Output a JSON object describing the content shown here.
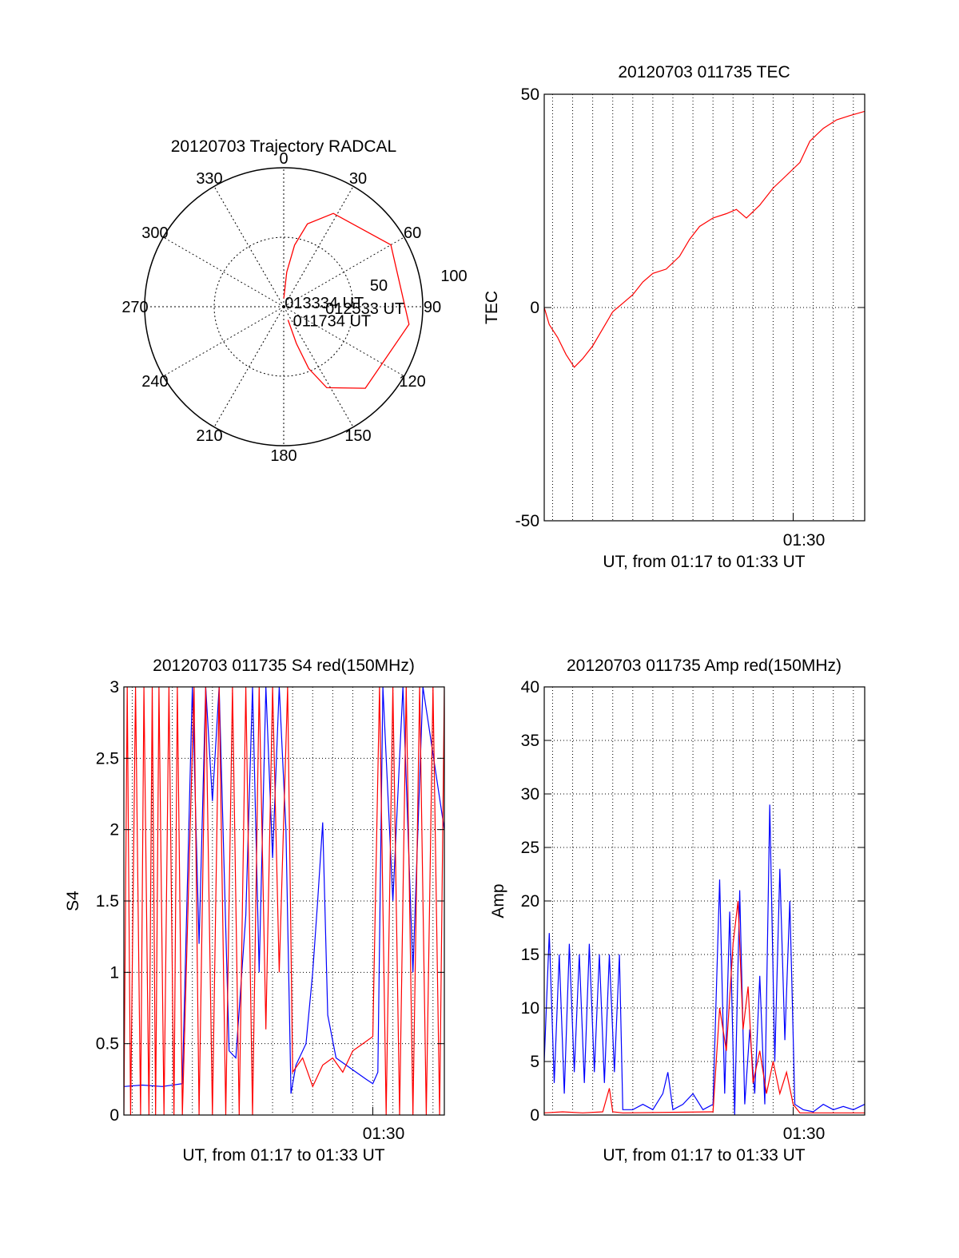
{
  "figure": {
    "colors": {
      "red_series": "#ff0000",
      "blue_series": "#0000ff",
      "axes": "#000000",
      "grid": "#000000"
    }
  },
  "chart_data": [
    {
      "type": "polar",
      "title": "20120703 Trajectory RADCAL",
      "angle_labels": [
        "0",
        "30",
        "60",
        "90",
        "120",
        "150",
        "180",
        "210",
        "240",
        "270",
        "300",
        "330"
      ],
      "radial_labels": [
        "50",
        "100"
      ],
      "radial_max": 100,
      "grid": true,
      "series": [
        {
          "color": "#ff0000",
          "points": [
            {
              "az": 0.5,
              "el": 94
            },
            {
              "az": 5,
              "el": 75
            },
            {
              "az": 10,
              "el": 55
            },
            {
              "az": 16,
              "el": 38
            },
            {
              "az": 28,
              "el": 24
            },
            {
              "az": 60,
              "el": 11
            },
            {
              "az": 98,
              "el": 9
            },
            {
              "az": 135,
              "el": 17
            },
            {
              "az": 152,
              "el": 34
            },
            {
              "az": 158,
              "el": 52
            },
            {
              "az": 161,
              "el": 72
            },
            {
              "az": 162,
              "el": 90
            }
          ]
        }
      ],
      "annotations": [
        {
          "text": "013334 UT",
          "az": 14,
          "el": 97
        },
        {
          "text": "012533 UT",
          "az": 92,
          "el": 70
        },
        {
          "text": "011734 UT",
          "az": 146,
          "el": 88
        }
      ]
    },
    {
      "type": "line",
      "title": "20120703 011735 TEC",
      "xlabel": "UT, from 01:17 to 01:33 UT",
      "ylabel": "TEC",
      "xlim": [
        "01:17:35",
        "01:33:34"
      ],
      "ylim": [
        -50,
        50
      ],
      "y_ticks": [
        "-50",
        "0",
        "50"
      ],
      "x_tick_label": "01:30",
      "grid": "vertical dotted",
      "series": [
        {
          "color": "#ff0000",
          "points": [
            [
              "01:17:35",
              0
            ],
            [
              "01:17:50",
              -4
            ],
            [
              "01:18:15",
              -7
            ],
            [
              "01:18:40",
              -11
            ],
            [
              "01:19:05",
              -14
            ],
            [
              "01:19:30",
              -12
            ],
            [
              "01:20:00",
              -9
            ],
            [
              "01:20:30",
              -5
            ],
            [
              "01:21:00",
              -1
            ],
            [
              "01:21:30",
              1
            ],
            [
              "01:22:00",
              3
            ],
            [
              "01:22:30",
              6
            ],
            [
              "01:23:00",
              8
            ],
            [
              "01:23:40",
              9
            ],
            [
              "01:24:20",
              12
            ],
            [
              "01:24:50",
              16
            ],
            [
              "01:25:20",
              19
            ],
            [
              "01:26:00",
              21
            ],
            [
              "01:26:40",
              22
            ],
            [
              "01:27:10",
              23
            ],
            [
              "01:27:40",
              21
            ],
            [
              "01:28:20",
              24
            ],
            [
              "01:29:00",
              28
            ],
            [
              "01:29:40",
              31
            ],
            [
              "01:30:20",
              34
            ],
            [
              "01:30:50",
              39
            ],
            [
              "01:31:30",
              42
            ],
            [
              "01:32:10",
              44
            ],
            [
              "01:32:50",
              45
            ],
            [
              "01:33:34",
              46
            ]
          ]
        }
      ]
    },
    {
      "type": "line",
      "title": "20120703 011735 S4 red(150MHz)",
      "xlabel": "UT, from 01:17 to 01:33 UT",
      "ylabel": "S4",
      "xlim": [
        "01:17:35",
        "01:33:34"
      ],
      "ylim": [
        0,
        3
      ],
      "y_ticks": [
        "0",
        "0.5",
        "1",
        "1.5",
        "2",
        "2.5",
        "3"
      ],
      "x_tick_label": "01:30",
      "grid": true,
      "series": [
        {
          "color": "#0000ff",
          "points": [
            [
              "01:17:35",
              0.2
            ],
            [
              "01:18:30",
              0.21
            ],
            [
              "01:19:30",
              0.2
            ],
            [
              "01:20:30",
              0.22
            ],
            [
              "01:21:00",
              3.0
            ],
            [
              "01:21:20",
              1.2
            ],
            [
              "01:21:40",
              3.0
            ],
            [
              "01:22:00",
              2.2
            ],
            [
              "01:22:20",
              3.0
            ],
            [
              "01:22:50",
              0.45
            ],
            [
              "01:23:10",
              0.4
            ],
            [
              "01:23:40",
              1.4
            ],
            [
              "01:24:00",
              3.0
            ],
            [
              "01:24:20",
              1.0
            ],
            [
              "01:24:40",
              3.0
            ],
            [
              "01:25:00",
              1.8
            ],
            [
              "01:25:20",
              3.0
            ],
            [
              "01:25:40",
              2.0
            ],
            [
              "01:25:55",
              0.15
            ],
            [
              "01:26:10",
              0.35
            ],
            [
              "01:26:40",
              0.5
            ],
            [
              "01:27:00",
              1.0
            ],
            [
              "01:27:15",
              1.5
            ],
            [
              "01:27:30",
              2.05
            ],
            [
              "01:27:45",
              0.7
            ],
            [
              "01:28:10",
              0.4
            ],
            [
              "01:28:40",
              0.35
            ],
            [
              "01:29:10",
              0.3
            ],
            [
              "01:29:40",
              0.25
            ],
            [
              "01:30:00",
              0.22
            ],
            [
              "01:30:15",
              0.3
            ],
            [
              "01:30:30",
              3.0
            ],
            [
              "01:31:00",
              1.5
            ],
            [
              "01:31:30",
              3.0
            ],
            [
              "01:32:00",
              1.0
            ],
            [
              "01:32:30",
              3.0
            ],
            [
              "01:33:34",
              2.0
            ]
          ]
        },
        {
          "color": "#ff0000",
          "points": [
            [
              "01:17:35",
              0
            ],
            [
              "01:17:45",
              3.0
            ],
            [
              "01:17:55",
              0
            ],
            [
              "01:18:10",
              3.0
            ],
            [
              "01:18:25",
              0
            ],
            [
              "01:18:35",
              3.0
            ],
            [
              "01:18:50",
              0
            ],
            [
              "01:19:00",
              3.0
            ],
            [
              "01:19:10",
              0
            ],
            [
              "01:19:20",
              3.0
            ],
            [
              "01:19:35",
              0
            ],
            [
              "01:19:50",
              3.0
            ],
            [
              "01:20:05",
              0
            ],
            [
              "01:20:15",
              3.0
            ],
            [
              "01:20:30",
              0
            ],
            [
              "01:21:05",
              3.0
            ],
            [
              "01:21:20",
              0
            ],
            [
              "01:21:40",
              3.0
            ],
            [
              "01:22:00",
              0
            ],
            [
              "01:22:20",
              3.0
            ],
            [
              "01:22:40",
              0
            ],
            [
              "01:23:00",
              3.0
            ],
            [
              "01:23:20",
              0
            ],
            [
              "01:23:40",
              3.0
            ],
            [
              "01:24:00",
              0
            ],
            [
              "01:24:20",
              3.0
            ],
            [
              "01:24:40",
              0.6
            ],
            [
              "01:25:00",
              3.0
            ],
            [
              "01:25:20",
              1.0
            ],
            [
              "01:25:45",
              3.0
            ],
            [
              "01:26:00",
              0.3
            ],
            [
              "01:26:30",
              0.4
            ],
            [
              "01:27:00",
              0.2
            ],
            [
              "01:27:30",
              0.35
            ],
            [
              "01:28:00",
              0.4
            ],
            [
              "01:28:30",
              0.3
            ],
            [
              "01:29:00",
              0.45
            ],
            [
              "01:29:30",
              0.5
            ],
            [
              "01:30:00",
              0.55
            ],
            [
              "01:30:20",
              3.0
            ],
            [
              "01:30:40",
              0
            ],
            [
              "01:31:00",
              3.0
            ],
            [
              "01:31:20",
              0
            ],
            [
              "01:31:40",
              3.0
            ],
            [
              "01:32:00",
              0
            ],
            [
              "01:32:20",
              3.0
            ],
            [
              "01:32:40",
              0
            ],
            [
              "01:33:00",
              3.0
            ],
            [
              "01:33:20",
              0
            ],
            [
              "01:33:34",
              3.0
            ]
          ]
        }
      ]
    },
    {
      "type": "line",
      "title": "20120703 011735 Amp red(150MHz)",
      "xlabel": "UT, from 01:17 to 01:33 UT",
      "ylabel": "Amp",
      "xlim": [
        "01:17:35",
        "01:33:34"
      ],
      "ylim": [
        0,
        40
      ],
      "y_ticks": [
        "0",
        "5",
        "10",
        "15",
        "20",
        "25",
        "30",
        "35",
        "40"
      ],
      "x_tick_label": "01:30",
      "grid": true,
      "series": [
        {
          "color": "#0000ff",
          "points": [
            [
              "01:17:35",
              5
            ],
            [
              "01:17:50",
              17
            ],
            [
              "01:18:05",
              3
            ],
            [
              "01:18:20",
              15
            ],
            [
              "01:18:35",
              2
            ],
            [
              "01:18:50",
              16
            ],
            [
              "01:19:05",
              4
            ],
            [
              "01:19:20",
              15
            ],
            [
              "01:19:35",
              3
            ],
            [
              "01:19:50",
              16
            ],
            [
              "01:20:05",
              4
            ],
            [
              "01:20:20",
              15
            ],
            [
              "01:20:35",
              3
            ],
            [
              "01:20:50",
              15
            ],
            [
              "01:21:05",
              4
            ],
            [
              "01:21:20",
              15
            ],
            [
              "01:21:30",
              0.5
            ],
            [
              "01:22:00",
              0.5
            ],
            [
              "01:22:30",
              1
            ],
            [
              "01:23:00",
              0.5
            ],
            [
              "01:23:30",
              2
            ],
            [
              "01:23:45",
              4
            ],
            [
              "01:24:00",
              0.5
            ],
            [
              "01:24:30",
              1
            ],
            [
              "01:25:00",
              2
            ],
            [
              "01:25:30",
              0.5
            ],
            [
              "01:26:00",
              1
            ],
            [
              "01:26:20",
              22
            ],
            [
              "01:26:35",
              2
            ],
            [
              "01:26:50",
              19
            ],
            [
              "01:27:05",
              0
            ],
            [
              "01:27:20",
              21
            ],
            [
              "01:27:35",
              1
            ],
            [
              "01:27:50",
              8
            ],
            [
              "01:28:05",
              2
            ],
            [
              "01:28:20",
              13
            ],
            [
              "01:28:35",
              1
            ],
            [
              "01:28:50",
              29
            ],
            [
              "01:29:05",
              5
            ],
            [
              "01:29:20",
              23
            ],
            [
              "01:29:35",
              7
            ],
            [
              "01:29:50",
              20
            ],
            [
              "01:30:05",
              1
            ],
            [
              "01:30:30",
              0.5
            ],
            [
              "01:31:00",
              0.3
            ],
            [
              "01:31:30",
              1
            ],
            [
              "01:32:00",
              0.5
            ],
            [
              "01:32:30",
              0.8
            ],
            [
              "01:33:00",
              0.5
            ],
            [
              "01:33:34",
              1
            ]
          ]
        },
        {
          "color": "#ff0000",
          "points": [
            [
              "01:17:35",
              0.2
            ],
            [
              "01:18:30",
              0.3
            ],
            [
              "01:19:30",
              0.2
            ],
            [
              "01:20:30",
              0.3
            ],
            [
              "01:20:50",
              2.5
            ],
            [
              "01:21:00",
              0.3
            ],
            [
              "01:21:30",
              0.2
            ],
            [
              "01:26:00",
              0.3
            ],
            [
              "01:26:20",
              10
            ],
            [
              "01:26:40",
              6
            ],
            [
              "01:27:00",
              16
            ],
            [
              "01:27:15",
              20
            ],
            [
              "01:27:30",
              8
            ],
            [
              "01:27:45",
              12
            ],
            [
              "01:28:00",
              3
            ],
            [
              "01:28:20",
              6
            ],
            [
              "01:28:40",
              2
            ],
            [
              "01:29:00",
              5
            ],
            [
              "01:29:20",
              2
            ],
            [
              "01:29:40",
              4
            ],
            [
              "01:30:00",
              1
            ],
            [
              "01:30:20",
              0.2
            ],
            [
              "01:33:34",
              0.2
            ]
          ]
        }
      ]
    }
  ]
}
